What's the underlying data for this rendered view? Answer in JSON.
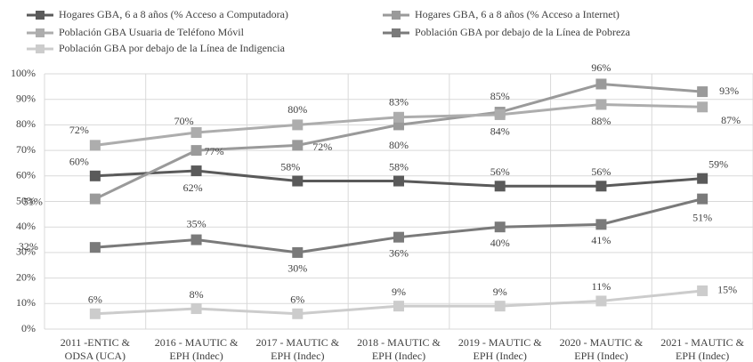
{
  "chart_data": {
    "type": "line",
    "categories": [
      [
        "2011 -ENTIC &",
        "ODSA (UCA)"
      ],
      [
        "2016 - MAUTIC &",
        "EPH (Indec)"
      ],
      [
        "2017 - MAUTIC &",
        "EPH (Indec)"
      ],
      [
        "2018 - MAUTIC &",
        "EPH (Indec)"
      ],
      [
        "2019 - MAUTIC &",
        "EPH (Indec)"
      ],
      [
        "2020 - MAUTIC &",
        "EPH (Indec)"
      ],
      [
        "2021 - MAUTIC &",
        "EPH (Indec)"
      ]
    ],
    "series": [
      {
        "name": "Hogares GBA, 6 a 8 años (% Acceso a Computadora)",
        "color": "#5a5a5a",
        "values": [
          60,
          62,
          58,
          58,
          56,
          56,
          59
        ],
        "value_labels": [
          "60%",
          "62%",
          "58%",
          "58%",
          "56%",
          "56%",
          "59%"
        ]
      },
      {
        "name": "Hogares GBA, 6 a 8 años (% Acceso a Internet)",
        "color": "#9a9a9a",
        "values": [
          51,
          70,
          72,
          80,
          85,
          96,
          93
        ],
        "value_labels": [
          "51%",
          "70%",
          "72%",
          "80%",
          "85%",
          "96%",
          "93%"
        ]
      },
      {
        "name": "Población GBA Usuaria de Teléfono Móvil",
        "color": "#adadad",
        "values": [
          72,
          77,
          80,
          83,
          84,
          88,
          87
        ],
        "value_labels": [
          "72%",
          "77%",
          "80%",
          "83%",
          "84%",
          "88%",
          "87%"
        ]
      },
      {
        "name": "Población GBA por debajo de la Línea de Pobreza",
        "color": "#7a7a7a",
        "values": [
          32,
          35,
          30,
          36,
          40,
          41,
          51
        ],
        "value_labels": [
          "32%",
          "35%",
          "30%",
          "36%",
          "40%",
          "41%",
          "51%"
        ]
      },
      {
        "name": "Población GBA por debajo de la Línea de Indigencia",
        "color": "#cccccc",
        "values": [
          6,
          8,
          6,
          9,
          9,
          11,
          15
        ],
        "value_labels": [
          "6%",
          "8%",
          "6%",
          "9%",
          "9%",
          "11%",
          "15%"
        ]
      }
    ],
    "ylim": [
      0,
      100
    ],
    "yticks": [
      {
        "value": 0,
        "label": "0%"
      },
      {
        "value": 10,
        "label": "10%"
      },
      {
        "value": 20,
        "label": "20%"
      },
      {
        "value": 30,
        "label": "30%"
      },
      {
        "value": 40,
        "label": "40%"
      },
      {
        "value": 50,
        "label": "50%"
      },
      {
        "value": 60,
        "label": "60%"
      },
      {
        "value": 70,
        "label": "70%"
      },
      {
        "value": 80,
        "label": "80%"
      },
      {
        "value": 90,
        "label": "90%"
      },
      {
        "value": 100,
        "label": "100%"
      }
    ],
    "grid": true
  }
}
